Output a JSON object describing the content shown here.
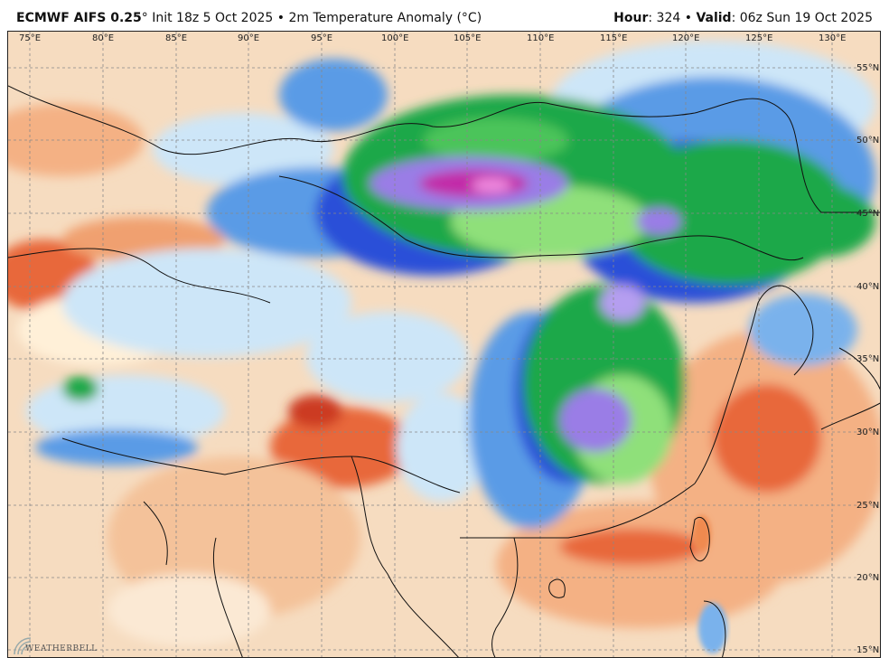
{
  "header": {
    "model": "ECMWF AIFS 0.25",
    "deg": "°",
    "init": "Init 18z 5 Oct 2025",
    "sep1": "•",
    "field": "2m Temperature Anomaly (°C)",
    "hour_label": "Hour",
    "hour_value": ": 324",
    "sep2": "•",
    "valid_label": "Valid",
    "valid_value": ": 06z Sun 19 Oct 2025"
  },
  "map": {
    "lon_labels": [
      "75°E",
      "80°E",
      "85°E",
      "90°E",
      "95°E",
      "100°E",
      "105°E",
      "110°E",
      "115°E",
      "120°E",
      "125°E",
      "130°E"
    ],
    "lat_labels": [
      "55°N",
      "50°N",
      "45°N",
      "40°N",
      "35°N",
      "30°N",
      "25°N",
      "20°N",
      "15°N"
    ],
    "colors": {
      "warm_light": "#f6dcc0",
      "warm": "#f4b184",
      "warm_strong": "#e8683a",
      "hot": "#cc3a22",
      "cold_light": "#cde6f8",
      "cold": "#5a9be6",
      "cold_strong": "#2a4fd8",
      "green": "#1fa84a",
      "green_light": "#8fe07a",
      "purple": "#9a7de6",
      "magenta": "#c229a8"
    }
  },
  "logo": {
    "text": "WEATHERBELL"
  }
}
